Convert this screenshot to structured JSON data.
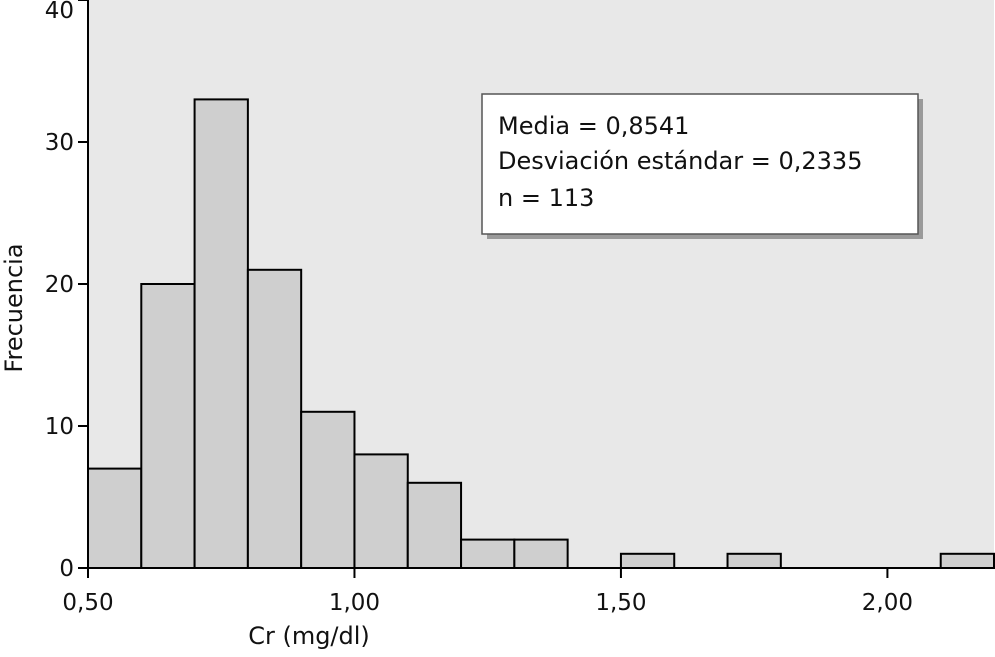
{
  "chart_data": {
    "type": "bar",
    "subtype": "histogram",
    "xlabel": "Cr (mg/dl)",
    "ylabel": "Frecuencia",
    "xlim": [
      0.5,
      2.2
    ],
    "ylim": [
      0,
      40
    ],
    "bin_width": 0.1,
    "bins": [
      {
        "start": 0.5,
        "end": 0.6,
        "count": 7
      },
      {
        "start": 0.6,
        "end": 0.7,
        "count": 20
      },
      {
        "start": 0.7,
        "end": 0.8,
        "count": 33
      },
      {
        "start": 0.8,
        "end": 0.9,
        "count": 21
      },
      {
        "start": 0.9,
        "end": 1.0,
        "count": 11
      },
      {
        "start": 1.0,
        "end": 1.1,
        "count": 8
      },
      {
        "start": 1.1,
        "end": 1.2,
        "count": 6
      },
      {
        "start": 1.2,
        "end": 1.3,
        "count": 2
      },
      {
        "start": 1.3,
        "end": 1.4,
        "count": 2
      },
      {
        "start": 1.5,
        "end": 1.6,
        "count": 1
      },
      {
        "start": 1.7,
        "end": 1.8,
        "count": 1
      },
      {
        "start": 2.1,
        "end": 2.2,
        "count": 1
      }
    ],
    "x_ticks": [
      {
        "value": 0.5,
        "label": "0,50"
      },
      {
        "value": 1.0,
        "label": "1,00"
      },
      {
        "value": 1.5,
        "label": "1,50"
      },
      {
        "value": 2.0,
        "label": "2,00"
      }
    ],
    "y_ticks": [
      {
        "value": 0,
        "label": "0"
      },
      {
        "value": 10,
        "label": "10"
      },
      {
        "value": 20,
        "label": "20"
      },
      {
        "value": 30,
        "label": "30"
      },
      {
        "value": 40,
        "label": "40"
      }
    ],
    "grid": false,
    "stats_box": {
      "placement": "top-right",
      "lines": [
        "Media = 0,8541",
        "Desviación estándar = 0,2335",
        "n = 113"
      ]
    },
    "colors": {
      "plot_background": "#e8e8e8",
      "bar_fill": "#cfcfcf",
      "bar_stroke": "#000000",
      "axis": "#000000",
      "box_fill": "#ffffff",
      "box_shadow": "#9a9a9a"
    }
  }
}
